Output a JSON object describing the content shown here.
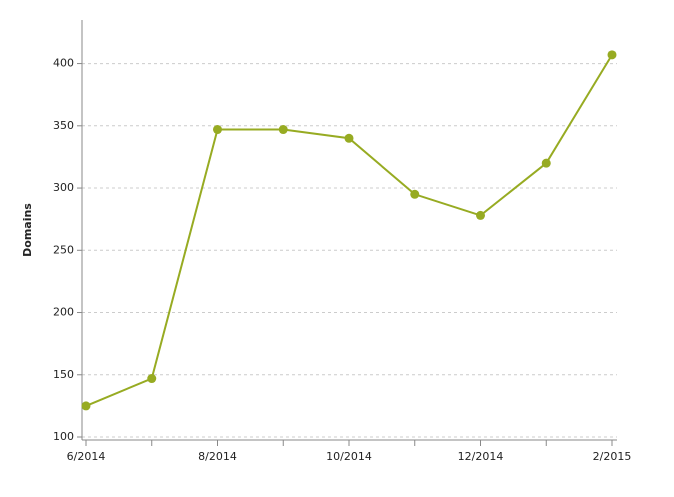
{
  "chart_data": {
    "type": "line",
    "y_label": "Domains",
    "categories": [
      "6/2014",
      null,
      "8/2014",
      null,
      "10/2014",
      null,
      "12/2014",
      null,
      "2/2015"
    ],
    "series": [
      {
        "name": "Domains",
        "color": "#97ab22",
        "values": [
          125,
          147,
          347,
          347,
          340,
          295,
          278,
          320,
          407
        ]
      }
    ],
    "ylim": [
      97.6,
      435
    ],
    "yticks": [
      100,
      150,
      200,
      250,
      300,
      350,
      400
    ],
    "grid": true
  }
}
